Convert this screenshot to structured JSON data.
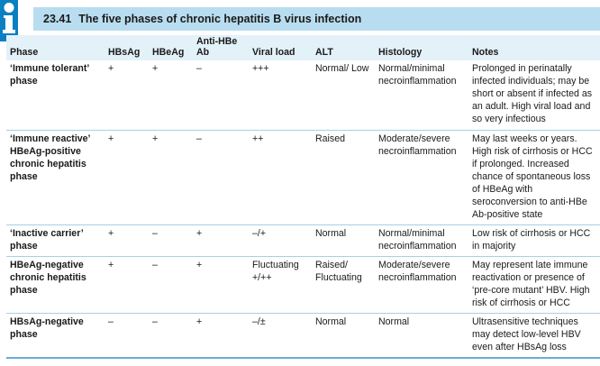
{
  "box": {
    "number": "23.41",
    "title": "The five phases of chronic hepatitis B virus infection"
  },
  "headers": [
    "Phase",
    "HBsAg",
    "HBeAg",
    "Anti-HBe Ab",
    "Viral load",
    "ALT",
    "Histology",
    "Notes"
  ],
  "rows": [
    {
      "phase": "‘Immune tolerant’ phase",
      "hbsag": "+",
      "hbeag": "+",
      "antihbe": "–",
      "viral": "+++",
      "alt": "Normal/ Low",
      "histology": "Normal/minimal necroinflammation",
      "notes": "Prolonged in perinatally infected individuals; may be short or absent if infected as an adult. High viral load and so very infectious"
    },
    {
      "phase": "‘Immune reactive’ HBeAg-positive chronic hepatitis phase",
      "hbsag": "+",
      "hbeag": "+",
      "antihbe": "–",
      "viral": "++",
      "alt": "Raised",
      "histology": "Moderate/severe necroinflammation",
      "notes": "May last weeks or years. High risk of cirrhosis or HCC if prolonged. Increased chance of spontaneous loss of HBeAg with seroconversion to anti-HBe Ab-positive state"
    },
    {
      "phase": "‘Inactive carrier’ phase",
      "hbsag": "+",
      "hbeag": "–",
      "antihbe": "+",
      "viral": "–/+",
      "alt": "Normal",
      "histology": "Normal/minimal necroinflammation",
      "notes": "Low risk of cirrhosis or HCC in majority"
    },
    {
      "phase": "HBeAg-negative chronic hepatitis phase",
      "hbsag": "+",
      "hbeag": "–",
      "antihbe": "+",
      "viral": "Fluctuating +/++",
      "alt": "Raised/ Fluctuating",
      "histology": "Moderate/severe necroinflammation",
      "notes": "May represent late immune reactivation or presence of ‘pre-core mutant’ HBV. High risk of cirrhosis or HCC"
    },
    {
      "phase": "HBsAg-negative phase",
      "hbsag": "–",
      "hbeag": "–",
      "antihbe": "+",
      "viral": "–/±",
      "alt": "Normal",
      "histology": "Normal",
      "notes": "Ultrasensitive techniques may detect low-level HBV even after HBsAg loss"
    }
  ],
  "colors": {
    "title_bar": "#b9ddf0",
    "header_row": "#e3f1f9",
    "icon": "#0a7fc2",
    "rule": "#a8cfe6"
  }
}
